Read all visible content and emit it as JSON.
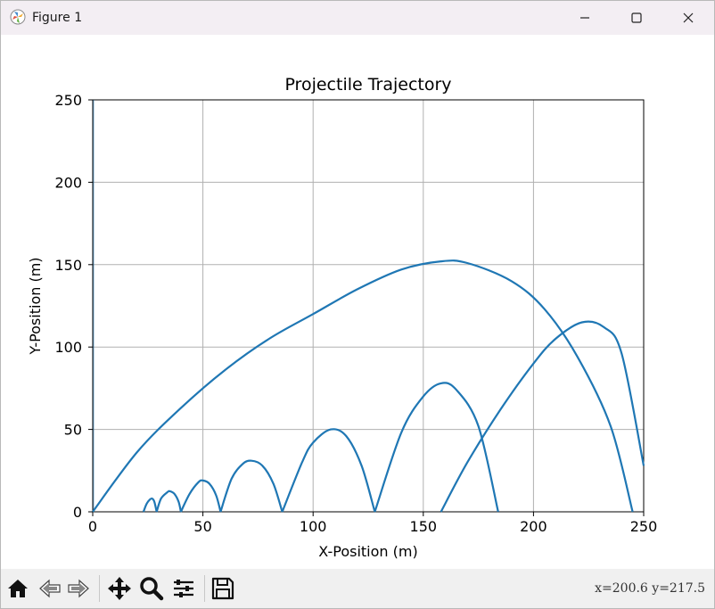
{
  "window": {
    "title": "Figure 1"
  },
  "toolbar": {
    "tools": [
      {
        "name": "home-icon"
      },
      {
        "name": "back-icon"
      },
      {
        "name": "forward-icon"
      },
      {
        "name": "pan-icon"
      },
      {
        "name": "zoom-icon"
      },
      {
        "name": "configure-subplots-icon"
      },
      {
        "name": "save-icon"
      }
    ],
    "coords": "x=200.6 y=217.5"
  },
  "chart_data": {
    "type": "line",
    "title": "Projectile Trajectory",
    "xlabel": "X-Position (m)",
    "ylabel": "Y-Position (m)",
    "xlim": [
      0,
      250
    ],
    "ylim": [
      0,
      250
    ],
    "xticks": [
      "0",
      "50",
      "100",
      "150",
      "200",
      "250"
    ],
    "yticks": [
      "0",
      "50",
      "100",
      "150",
      "200",
      "250"
    ],
    "grid": true,
    "color": "#1f77b4",
    "series": [
      {
        "x": [
          0,
          20,
          40,
          60,
          80,
          100,
          120,
          140,
          158,
          170,
          190,
          205,
          220,
          235,
          245
        ],
        "y": [
          0,
          36,
          63,
          86,
          105,
          120,
          135,
          147,
          152,
          151,
          140,
          123,
          94,
          52,
          0
        ]
      },
      {
        "x": [
          158,
          170,
          185,
          200,
          210,
          222,
          232,
          240,
          250
        ],
        "y": [
          0,
          30,
          62,
          90,
          105,
          115,
          112,
          96,
          28
        ]
      },
      {
        "x": [
          128,
          140,
          150,
          158,
          165,
          175,
          184
        ],
        "y": [
          0,
          48,
          70,
          78,
          74,
          52,
          0
        ]
      },
      {
        "x": [
          86,
          95,
          100,
          108,
          115,
          122,
          128
        ],
        "y": [
          0,
          30,
          42,
          50,
          46,
          28,
          0
        ]
      },
      {
        "x": [
          58,
          63,
          68,
          72,
          77,
          82,
          86
        ],
        "y": [
          0,
          20,
          29,
          31,
          28,
          17,
          0
        ]
      },
      {
        "x": [
          40,
          44,
          48,
          50,
          53,
          56,
          58
        ],
        "y": [
          0,
          11,
          18,
          19,
          17,
          10,
          0
        ]
      },
      {
        "x": [
          29,
          31,
          34,
          35,
          37,
          39,
          40
        ],
        "y": [
          0,
          8,
          12,
          12.5,
          11,
          6,
          0
        ]
      },
      {
        "x": [
          23,
          24.5,
          26,
          27,
          28,
          29
        ],
        "y": [
          0,
          5,
          7.5,
          8,
          6,
          0
        ]
      }
    ]
  }
}
